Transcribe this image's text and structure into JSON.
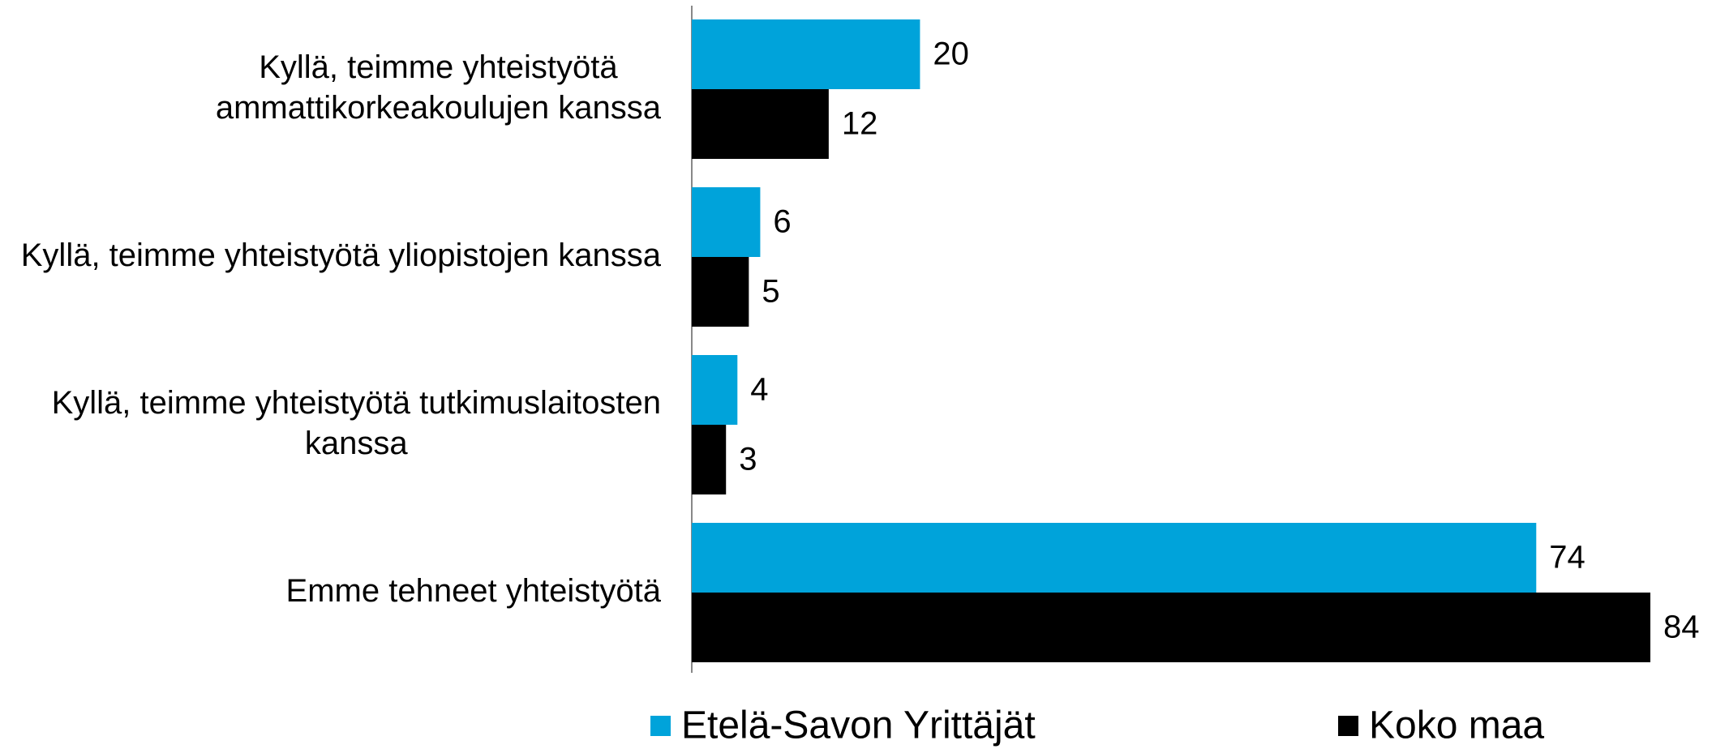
{
  "chart_data": {
    "type": "hbar",
    "categories": [
      "Kyllä, teimme yhteistyötä ammattikorkeakoulujen kanssa",
      "Kyllä, teimme yhteistyötä yliopistojen kanssa",
      "Kyllä, teimme yhteistyötä tutkimuslaitosten kanssa",
      "Emme tehneet yhteistyötä"
    ],
    "series": [
      {
        "name": "Etelä-Savon Yrittäjät",
        "color": "#00a3da",
        "values": [
          20,
          6,
          4,
          74
        ]
      },
      {
        "name": "Koko maa",
        "color": "#000000",
        "values": [
          12,
          5,
          3,
          84
        ]
      }
    ],
    "legend": "bottom"
  }
}
